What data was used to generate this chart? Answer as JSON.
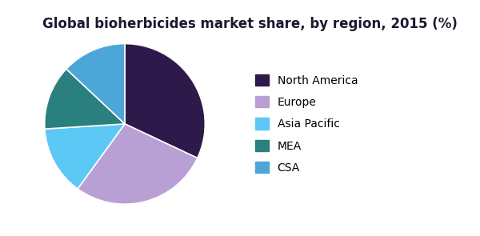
{
  "title": "Global bioherbicides market share, by region, 2015 (%)",
  "labels": [
    "North America",
    "Europe",
    "Asia Pacific",
    "MEA",
    "CSA"
  ],
  "values": [
    32,
    28,
    14,
    13,
    13
  ],
  "colors": [
    "#2e1a4a",
    "#b89fd4",
    "#5bc8f5",
    "#2a7f7f",
    "#4da6d8"
  ],
  "startangle": 90,
  "legend_fontsize": 10,
  "title_fontsize": 12,
  "title_color": "#1a1a2e",
  "header_bar_color": "#6b2d8b",
  "header_accent_color": "#b89fd4",
  "background_color": "#ffffff",
  "wedge_edge_color": "#ffffff"
}
